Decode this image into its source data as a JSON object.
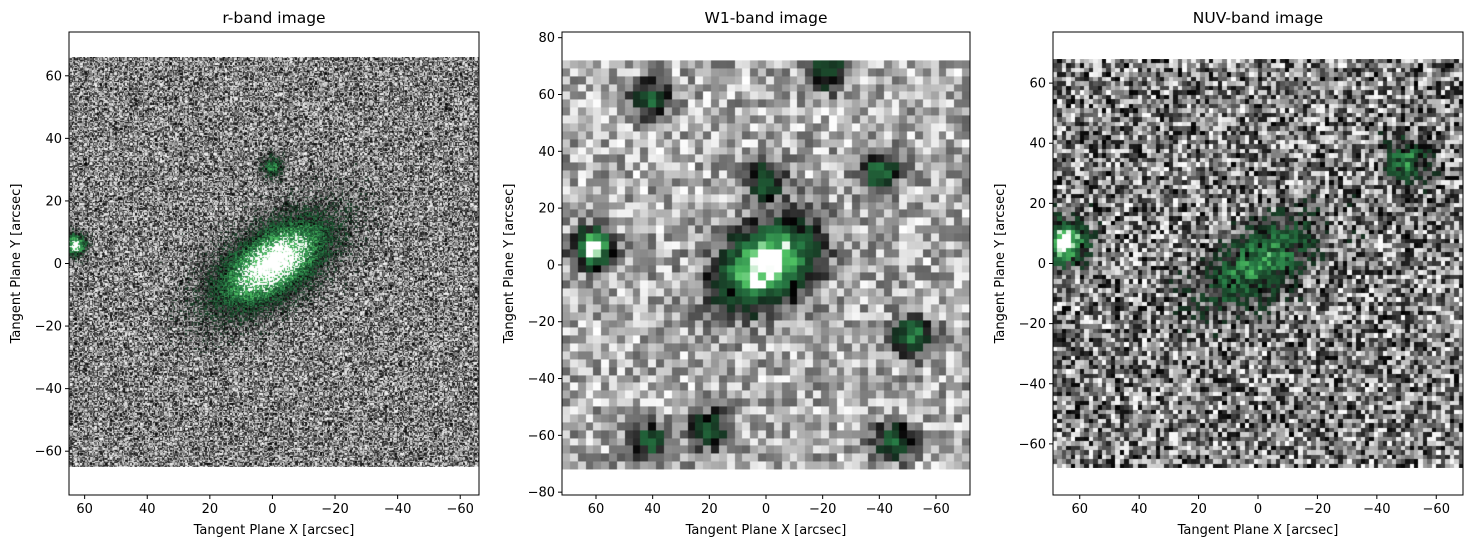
{
  "chart_data": [
    {
      "type": "heatmap",
      "title": "r-band image",
      "xlabel": "Tangent Plane X [arcsec]",
      "ylabel": "Tangent Plane Y [arcsec]",
      "xlim": [
        65,
        -66
      ],
      "ylim": [
        -74,
        74
      ],
      "image_extent": {
        "x": [
          65,
          -66
        ],
        "y": [
          -65,
          66
        ]
      },
      "xticks": [
        60,
        40,
        20,
        0,
        -20,
        -40,
        -60
      ],
      "yticks": [
        -60,
        -40,
        -20,
        0,
        20,
        40,
        60
      ],
      "tick_labels_x": [
        "60",
        "40",
        "20",
        "0",
        "−20",
        "−40",
        "−60"
      ],
      "tick_labels_y": [
        "−60",
        "−40",
        "−20",
        "0",
        "20",
        "40",
        "60"
      ],
      "grid": false,
      "colormap": "noisy grayscale background with green highlights for bright sources",
      "pixel_size_arcsec": 0.4,
      "sources": [
        {
          "x": 0,
          "y": 0,
          "brightness": 1.0,
          "kind": "extended galaxy, tilted ellipse"
        },
        {
          "x": 63,
          "y": 6,
          "brightness": 0.9,
          "kind": "bright star at left edge"
        },
        {
          "x": 0,
          "y": 31,
          "brightness": 0.5,
          "kind": "compact"
        }
      ]
    },
    {
      "type": "heatmap",
      "title": "W1-band image",
      "xlabel": "Tangent Plane X [arcsec]",
      "ylabel": "Tangent Plane Y [arcsec]",
      "xlim": [
        72,
        -72
      ],
      "ylim": [
        -81,
        82
      ],
      "image_extent": {
        "x": [
          72,
          -72
        ],
        "y": [
          -72,
          72
        ]
      },
      "xticks": [
        60,
        40,
        20,
        0,
        -20,
        -40,
        -60
      ],
      "yticks": [
        -80,
        -60,
        -40,
        -20,
        0,
        20,
        40,
        60,
        80
      ],
      "tick_labels_x": [
        "60",
        "40",
        "20",
        "0",
        "−20",
        "−40",
        "−60"
      ],
      "tick_labels_y": [
        "−80",
        "−60",
        "−40",
        "−20",
        "0",
        "20",
        "40",
        "60",
        "80"
      ],
      "grid": false,
      "colormap": "grayscale with green highlights for bright sources",
      "pixel_size_arcsec": 2.75,
      "sources": [
        {
          "x": 0,
          "y": 0,
          "brightness": 1.0,
          "kind": "galaxy"
        },
        {
          "x": 61,
          "y": 6,
          "brightness": 1.0,
          "kind": "bright star"
        },
        {
          "x": -40,
          "y": 33,
          "brightness": 0.6,
          "kind": "compact"
        },
        {
          "x": -52,
          "y": -25,
          "brightness": 0.6,
          "kind": "compact"
        },
        {
          "x": 41,
          "y": -62,
          "brightness": 0.5,
          "kind": "compact"
        },
        {
          "x": 20,
          "y": -58,
          "brightness": 0.5,
          "kind": "compact"
        },
        {
          "x": -45,
          "y": -62,
          "brightness": 0.5,
          "kind": "compact"
        },
        {
          "x": 0,
          "y": 30,
          "brightness": 0.5,
          "kind": "compact"
        },
        {
          "x": -22,
          "y": 68,
          "brightness": 0.5,
          "kind": "compact"
        },
        {
          "x": 41,
          "y": 58,
          "brightness": 0.5,
          "kind": "compact"
        }
      ]
    },
    {
      "type": "heatmap",
      "title": "NUV-band image",
      "xlabel": "Tangent Plane X [arcsec]",
      "ylabel": "Tangent Plane Y [arcsec]",
      "xlim": [
        69,
        -69
      ],
      "ylim": [
        -77,
        77
      ],
      "image_extent": {
        "x": [
          69,
          -69
        ],
        "y": [
          -68,
          68
        ]
      },
      "xticks": [
        60,
        40,
        20,
        0,
        -20,
        -40,
        -60
      ],
      "yticks": [
        -60,
        -40,
        -20,
        0,
        20,
        40,
        60
      ],
      "tick_labels_x": [
        "60",
        "40",
        "20",
        "0",
        "−20",
        "−40",
        "−60"
      ],
      "tick_labels_y": [
        "−60",
        "−40",
        "−20",
        "0",
        "20",
        "40",
        "60"
      ],
      "grid": false,
      "colormap": "noisy grayscale with green highlights for bright sources",
      "pixel_size_arcsec": 1.5,
      "sources": [
        {
          "x": 0,
          "y": 0,
          "brightness": 0.55,
          "kind": "galaxy"
        },
        {
          "x": 65,
          "y": 7,
          "brightness": 1.0,
          "kind": "bright star"
        },
        {
          "x": -50,
          "y": 34,
          "brightness": 0.5,
          "kind": "compact"
        }
      ]
    }
  ]
}
